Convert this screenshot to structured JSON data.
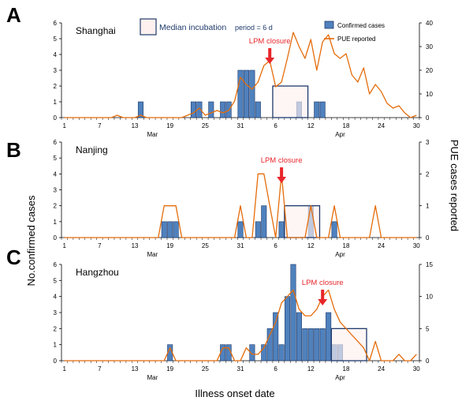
{
  "chart_data": [
    {
      "panel": "A",
      "type": "bar",
      "title": "Shanghai",
      "x_ticks": [
        "1",
        "7",
        "13",
        "19",
        "25",
        "31",
        "6",
        "12",
        "18",
        "24",
        "30"
      ],
      "month_labels": [
        "Mar",
        "Apr"
      ],
      "y_left": {
        "ylim": [
          0,
          6
        ],
        "ticks": [
          0,
          1,
          2,
          3,
          4,
          5,
          6
        ]
      },
      "y_right": {
        "ylim": [
          0,
          40
        ],
        "ticks": [
          0,
          10,
          20,
          30,
          40
        ]
      },
      "series": [
        {
          "name": "Confirmed cases",
          "type": "bar",
          "color": "#4f81bd",
          "x": [
            14,
            23,
            24,
            26,
            28,
            29,
            31,
            32,
            33,
            34,
            41,
            44,
            45
          ],
          "values": [
            1,
            1,
            1,
            1,
            1,
            1,
            3,
            3,
            3,
            1,
            1,
            1,
            1
          ]
        },
        {
          "name": "PUE reported",
          "type": "line",
          "color": "#e46c0a",
          "x": [
            1,
            2,
            3,
            4,
            5,
            6,
            7,
            8,
            9,
            10,
            11,
            12,
            13,
            14,
            15,
            16,
            17,
            18,
            19,
            20,
            21,
            22,
            23,
            24,
            25,
            26,
            27,
            28,
            29,
            30,
            31,
            32,
            33,
            34,
            35,
            36,
            37,
            38,
            39,
            40,
            41,
            42,
            43,
            44,
            45,
            46,
            47,
            48,
            49,
            50,
            51,
            52,
            53,
            54,
            55,
            56,
            57,
            58,
            59,
            60,
            61
          ],
          "values": [
            0,
            0,
            0,
            0,
            0,
            0,
            0,
            0,
            0,
            1,
            0,
            0,
            0,
            1,
            0,
            0,
            0,
            0,
            0,
            0,
            0,
            1,
            2,
            4,
            1,
            2,
            3,
            2,
            3,
            7,
            17,
            14,
            12,
            15,
            22,
            24,
            13,
            15,
            25,
            36,
            30,
            25,
            33,
            20,
            32,
            35,
            27,
            25,
            27,
            18,
            15,
            21,
            10,
            14,
            11,
            6,
            4,
            5,
            2,
            0,
            1
          ]
        }
      ],
      "intervals": [
        {
          "label_main": "Median incubation",
          "label_suffix": "period = 6 d",
          "start": 37,
          "end": 42
        }
      ],
      "annotations": [
        {
          "text": "LPM closure",
          "x": 36
        }
      ]
    },
    {
      "panel": "B",
      "type": "bar",
      "title": "Nanjing",
      "x_ticks": [
        "1",
        "7",
        "13",
        "19",
        "25",
        "31",
        "6",
        "12",
        "18",
        "24",
        "30"
      ],
      "month_labels": [
        "Mar",
        "Apr"
      ],
      "y_left": {
        "ylim": [
          0,
          6
        ],
        "ticks": [
          0,
          1,
          2,
          3,
          4,
          5,
          6
        ]
      },
      "y_right": {
        "ylim": [
          0,
          3
        ],
        "ticks": [
          0,
          1,
          2,
          3
        ]
      },
      "series": [
        {
          "name": "Confirmed cases",
          "type": "bar",
          "color": "#4f81bd",
          "x": [
            18,
            19,
            20,
            31,
            34,
            35,
            38,
            43,
            47
          ],
          "values": [
            1,
            1,
            1,
            1,
            1,
            2,
            1,
            2,
            1
          ]
        },
        {
          "name": "PUE reported",
          "type": "line",
          "color": "#e46c0a",
          "x": [
            1,
            2,
            3,
            4,
            5,
            6,
            7,
            8,
            9,
            10,
            11,
            12,
            13,
            14,
            15,
            16,
            17,
            18,
            19,
            20,
            21,
            22,
            23,
            24,
            25,
            26,
            27,
            28,
            29,
            30,
            31,
            32,
            33,
            34,
            35,
            36,
            37,
            38,
            39,
            40,
            41,
            42,
            43,
            44,
            45,
            46,
            47,
            48,
            49,
            50,
            51,
            52,
            53,
            54,
            55,
            56,
            57,
            58,
            59,
            60,
            61
          ],
          "values": [
            0,
            0,
            0,
            0,
            0,
            0,
            0,
            0,
            0,
            0,
            0,
            0,
            0,
            0,
            0,
            0,
            0,
            1,
            1,
            1,
            0,
            0,
            0,
            0,
            0,
            0,
            0,
            0,
            0,
            0,
            1,
            0,
            0,
            2,
            2,
            1,
            0,
            2,
            0,
            0,
            0,
            0,
            1,
            0,
            0,
            0,
            1,
            0,
            0,
            0,
            0,
            0,
            0,
            1,
            0,
            0,
            0,
            0,
            0,
            0,
            0
          ]
        }
      ],
      "intervals": [
        {
          "start": 39,
          "end": 44
        }
      ],
      "annotations": [
        {
          "text": "LPM closure",
          "x": 38
        }
      ]
    },
    {
      "panel": "C",
      "type": "bar",
      "title": "Hangzhou",
      "x_ticks": [
        "1",
        "7",
        "13",
        "19",
        "25",
        "31",
        "6",
        "12",
        "18",
        "24",
        "30"
      ],
      "month_labels": [
        "Mar",
        "Apr"
      ],
      "y_left": {
        "ylim": [
          0,
          6
        ],
        "ticks": [
          0,
          1,
          2,
          3,
          4,
          5,
          6
        ]
      },
      "y_right": {
        "ylim": [
          0,
          15
        ],
        "ticks": [
          0,
          5,
          10,
          15
        ]
      },
      "series": [
        {
          "name": "Confirmed cases",
          "type": "bar",
          "color": "#4f81bd",
          "x": [
            19,
            28,
            29,
            33,
            35,
            36,
            37,
            38,
            39,
            40,
            41,
            42,
            43,
            44,
            45,
            46,
            47,
            48
          ],
          "values": [
            1,
            1,
            1,
            1,
            1,
            2,
            3,
            1,
            4,
            6,
            3,
            2,
            2,
            2,
            2,
            3,
            1,
            1
          ]
        },
        {
          "name": "PUE reported",
          "type": "line",
          "color": "#e46c0a",
          "x": [
            1,
            2,
            3,
            4,
            5,
            6,
            7,
            8,
            9,
            10,
            11,
            12,
            13,
            14,
            15,
            16,
            17,
            18,
            19,
            20,
            21,
            22,
            23,
            24,
            25,
            26,
            27,
            28,
            29,
            30,
            31,
            32,
            33,
            34,
            35,
            36,
            37,
            38,
            39,
            40,
            41,
            42,
            43,
            44,
            45,
            46,
            47,
            48,
            49,
            50,
            51,
            52,
            53,
            54,
            55,
            56,
            57,
            58,
            59,
            60,
            61
          ],
          "values": [
            0,
            0,
            0,
            0,
            0,
            0,
            0,
            0,
            0,
            0,
            0,
            0,
            0,
            0,
            0,
            0,
            0,
            0,
            2,
            0,
            0,
            0,
            0,
            0,
            0,
            0,
            0,
            2,
            2,
            0,
            0,
            2,
            1,
            1,
            2,
            4,
            6,
            9,
            10,
            11,
            8,
            7,
            7,
            8,
            10,
            11,
            8,
            6,
            5,
            4,
            3,
            2,
            0,
            3,
            0,
            0,
            0,
            1,
            0,
            0,
            1
          ]
        }
      ],
      "intervals": [
        {
          "start": 47,
          "end": 52
        }
      ],
      "annotations": [
        {
          "text": "LPM closure",
          "x": 45
        }
      ]
    }
  ],
  "figure": {
    "panel_letters": [
      "A",
      "B",
      "C"
    ],
    "y_left_label": "No.confirmed cases",
    "y_right_label": "PUE cases reported",
    "x_label": "Illness onset date",
    "legend": {
      "bar_label": "Confirmed cases",
      "line_label": "PUE reported"
    },
    "colors": {
      "bar": "#4f81bd",
      "line": "#e46c0a",
      "arrow": "#e8262b",
      "box_fill": "#fdf0ef",
      "box_stroke": "#1f3a6b",
      "title_blue": "#1f3a6b"
    }
  }
}
